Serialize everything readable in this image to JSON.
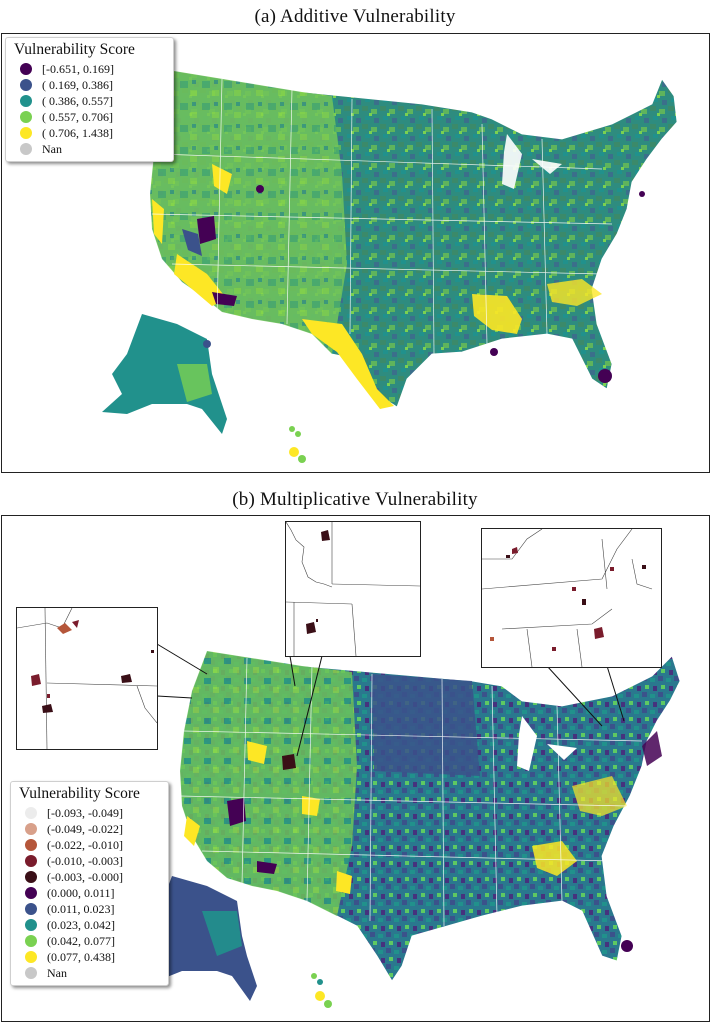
{
  "panel_a": {
    "title": "(a) Additive Vulnerability",
    "legend": {
      "title": "Vulnerability Score",
      "items": [
        {
          "label": "[-0.651,  0.169]",
          "color": "#440154"
        },
        {
          "label": "( 0.169,  0.386]",
          "color": "#3b528b"
        },
        {
          "label": "( 0.386,  0.557]",
          "color": "#21918c"
        },
        {
          "label": "( 0.557,  0.706]",
          "color": "#7ad151"
        },
        {
          "label": "( 0.706,  1.438]",
          "color": "#fde725"
        },
        {
          "label": "Nan",
          "color": "#c8c8c8"
        }
      ]
    }
  },
  "panel_b": {
    "title": "(b) Multiplicative Vulnerability",
    "legend": {
      "title": "Vulnerability Score",
      "items": [
        {
          "label": "[-0.093, -0.049]",
          "color": "#ececec"
        },
        {
          "label": "(-0.049, -0.022]",
          "color": "#d8a08a"
        },
        {
          "label": "(-0.022, -0.010]",
          "color": "#b5563a"
        },
        {
          "label": "(-0.010, -0.003]",
          "color": "#7a1c2c"
        },
        {
          "label": "(-0.003, -0.000]",
          "color": "#3a0f17"
        },
        {
          "label": "(0.000, 0.011]",
          "color": "#440154"
        },
        {
          "label": "(0.011, 0.023]",
          "color": "#3b528b"
        },
        {
          "label": "(0.023, 0.042]",
          "color": "#21918c"
        },
        {
          "label": "(0.042, 0.077]",
          "color": "#7ad151"
        },
        {
          "label": "(0.077, 0.438]",
          "color": "#fde725"
        },
        {
          "label": "Nan",
          "color": "#c8c8c8"
        }
      ]
    }
  }
}
